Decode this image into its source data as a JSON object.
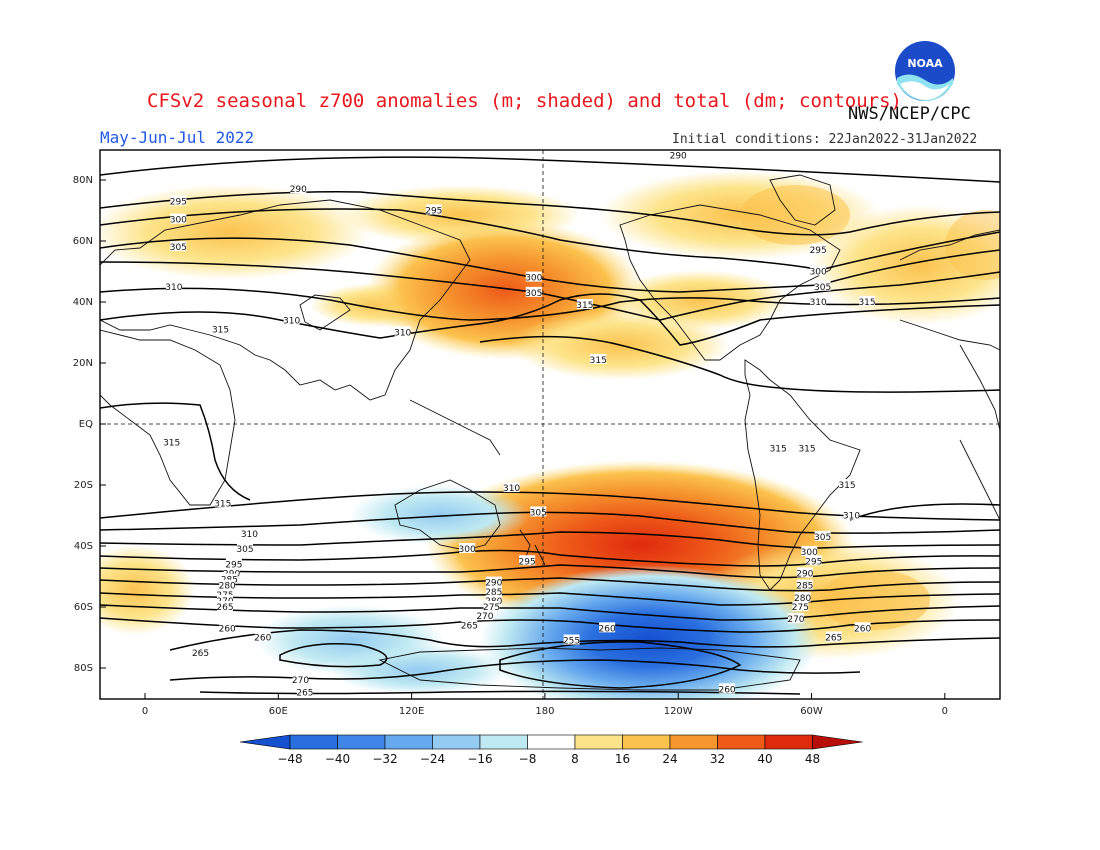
{
  "title": "CFSv2 seasonal z700 anomalies (m; shaded) and total (dm; contours)",
  "agency": "NWS/NCEP/CPC",
  "period": "May-Jun-Jul 2022",
  "initial_conditions": "Initial conditions: 22Jan2022-31Jan2022",
  "logo_text": "NOAA",
  "lat_labels": [
    "80N",
    "60N",
    "40N",
    "20N",
    "EQ",
    "20S",
    "40S",
    "60S",
    "80S"
  ],
  "lon_labels": [
    "0",
    "60E",
    "120E",
    "180",
    "120W",
    "60W",
    "0"
  ],
  "colorbar": {
    "levels": [
      "-48",
      "-40",
      "-32",
      "-24",
      "-16",
      "-8",
      "8",
      "16",
      "24",
      "32",
      "40",
      "48"
    ],
    "colors": [
      "#1450d0",
      "#2a6fe0",
      "#3f86e8",
      "#66a9ee",
      "#93cbf3",
      "#bfe9f2",
      "#ffffff",
      "#fde48a",
      "#fcc24e",
      "#f6962e",
      "#ee5a18",
      "#e02a0e",
      "#b80e0a"
    ]
  },
  "contour_labels": [
    {
      "v": "290",
      "lon": 240,
      "lat": 88
    },
    {
      "v": "290",
      "lon": 69,
      "lat": 77
    },
    {
      "v": "295",
      "lon": 15,
      "lat": 73
    },
    {
      "v": "300",
      "lon": 15,
      "lat": 67
    },
    {
      "v": "305",
      "lon": 15,
      "lat": 58
    },
    {
      "v": "310",
      "lon": 13,
      "lat": 45
    },
    {
      "v": "295",
      "lon": 130,
      "lat": 70
    },
    {
      "v": "300",
      "lon": 175,
      "lat": 48
    },
    {
      "v": "305",
      "lon": 175,
      "lat": 43
    },
    {
      "v": "315",
      "lon": 198,
      "lat": 39
    },
    {
      "v": "310",
      "lon": 116,
      "lat": 30
    },
    {
      "v": "310",
      "lon": 66,
      "lat": 34
    },
    {
      "v": "315",
      "lon": 34,
      "lat": 31
    },
    {
      "v": "315",
      "lon": 204,
      "lat": 21
    },
    {
      "v": "315",
      "lon": 12,
      "lat": -6
    },
    {
      "v": "315",
      "lon": 285,
      "lat": -8
    },
    {
      "v": "315",
      "lon": 298,
      "lat": -8
    },
    {
      "v": "295",
      "lon": 303,
      "lat": 57
    },
    {
      "v": "300",
      "lon": 303,
      "lat": 50
    },
    {
      "v": "305",
      "lon": 305,
      "lat": 45
    },
    {
      "v": "310",
      "lon": 303,
      "lat": 40
    },
    {
      "v": "315",
      "lon": 325,
      "lat": 40
    },
    {
      "v": "315",
      "lon": 35,
      "lat": -26
    },
    {
      "v": "315",
      "lon": 316,
      "lat": -20
    },
    {
      "v": "310",
      "lon": 165,
      "lat": -21
    },
    {
      "v": "310",
      "lon": 318,
      "lat": -30
    },
    {
      "v": "305",
      "lon": 177,
      "lat": -29
    },
    {
      "v": "305",
      "lon": 305,
      "lat": -37
    },
    {
      "v": "310",
      "lon": 47,
      "lat": -36
    },
    {
      "v": "305",
      "lon": 45,
      "lat": -41
    },
    {
      "v": "300",
      "lon": 145,
      "lat": -41
    },
    {
      "v": "300",
      "lon": 299,
      "lat": -42
    },
    {
      "v": "295",
      "lon": 40,
      "lat": -46
    },
    {
      "v": "290",
      "lon": 39,
      "lat": -49
    },
    {
      "v": "285",
      "lon": 38,
      "lat": -51
    },
    {
      "v": "280",
      "lon": 37,
      "lat": -53
    },
    {
      "v": "275",
      "lon": 36,
      "lat": -56
    },
    {
      "v": "270",
      "lon": 36,
      "lat": -58
    },
    {
      "v": "265",
      "lon": 36,
      "lat": -60
    },
    {
      "v": "295",
      "lon": 172,
      "lat": -45
    },
    {
      "v": "290",
      "lon": 157,
      "lat": -52
    },
    {
      "v": "285",
      "lon": 157,
      "lat": -55
    },
    {
      "v": "280",
      "lon": 157,
      "lat": -58
    },
    {
      "v": "275",
      "lon": 156,
      "lat": -60
    },
    {
      "v": "270",
      "lon": 153,
      "lat": -63
    },
    {
      "v": "265",
      "lon": 146,
      "lat": -66
    },
    {
      "v": "295",
      "lon": 301,
      "lat": -45
    },
    {
      "v": "290",
      "lon": 297,
      "lat": -49
    },
    {
      "v": "285",
      "lon": 297,
      "lat": -53
    },
    {
      "v": "280",
      "lon": 296,
      "lat": -57
    },
    {
      "v": "275",
      "lon": 295,
      "lat": -60
    },
    {
      "v": "270",
      "lon": 293,
      "lat": -64
    },
    {
      "v": "265",
      "lon": 310,
      "lat": -70
    },
    {
      "v": "260",
      "lon": 323,
      "lat": -67
    },
    {
      "v": "260",
      "lon": 37,
      "lat": -67
    },
    {
      "v": "260",
      "lon": 53,
      "lat": -70
    },
    {
      "v": "265",
      "lon": 25,
      "lat": -75
    },
    {
      "v": "270",
      "lon": 70,
      "lat": -84
    },
    {
      "v": "265",
      "lon": 72,
      "lat": -88
    },
    {
      "v": "260",
      "lon": 208,
      "lat": -67
    },
    {
      "v": "255",
      "lon": 192,
      "lat": -71
    },
    {
      "v": "260",
      "lon": 262,
      "lat": -87
    }
  ]
}
